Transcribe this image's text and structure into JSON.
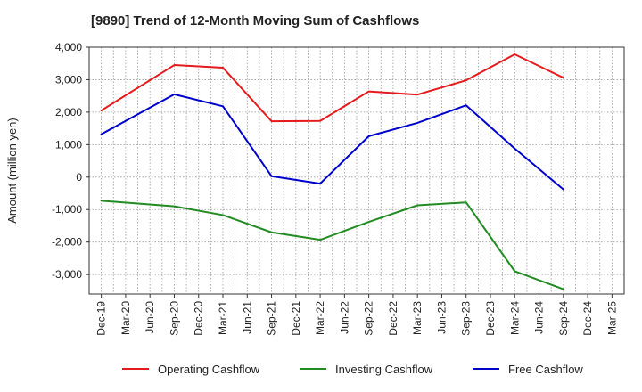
{
  "chart_data": {
    "type": "line",
    "title": "[9890]  Trend of 12-Month Moving Sum of Cashflows",
    "ylabel": "Amount (million yen)",
    "xlabel": "",
    "ylim": [
      -3600,
      4000
    ],
    "yticks": [
      4000,
      3000,
      2000,
      1000,
      0,
      -1000,
      -2000,
      -3000
    ],
    "ytick_labels": [
      "4,000",
      "3,000",
      "2,000",
      "1,000",
      "0",
      "-1,000",
      "-2,000",
      "-3,000"
    ],
    "categories": [
      "Dec-19",
      "Mar-20",
      "Jun-20",
      "Sep-20",
      "Dec-20",
      "Mar-21",
      "Jun-21",
      "Sep-21",
      "Dec-21",
      "Mar-22",
      "Jun-22",
      "Sep-22",
      "Dec-22",
      "Mar-23",
      "Jun-23",
      "Sep-23",
      "Dec-23",
      "Mar-24",
      "Jun-24",
      "Sep-24",
      "Dec-24",
      "Mar-25"
    ],
    "grid": true,
    "legend_position": "bottom",
    "series": [
      {
        "name": "Operating Cashflow",
        "color": "#e41a1c",
        "points": [
          {
            "x": "Dec-19",
            "y": 2050
          },
          {
            "x": "Sep-20",
            "y": 3450
          },
          {
            "x": "Mar-21",
            "y": 3370
          },
          {
            "x": "Sep-21",
            "y": 1720
          },
          {
            "x": "Mar-22",
            "y": 1730
          },
          {
            "x": "Sep-22",
            "y": 2640
          },
          {
            "x": "Mar-23",
            "y": 2540
          },
          {
            "x": "Sep-23",
            "y": 2980
          },
          {
            "x": "Mar-24",
            "y": 3780
          },
          {
            "x": "Sep-24",
            "y": 3060
          }
        ]
      },
      {
        "name": "Investing Cashflow",
        "color": "#228b22",
        "points": [
          {
            "x": "Dec-19",
            "y": -730
          },
          {
            "x": "Sep-20",
            "y": -900
          },
          {
            "x": "Mar-21",
            "y": -1170
          },
          {
            "x": "Sep-21",
            "y": -1700
          },
          {
            "x": "Mar-22",
            "y": -1930
          },
          {
            "x": "Sep-22",
            "y": -1380
          },
          {
            "x": "Mar-23",
            "y": -870
          },
          {
            "x": "Sep-23",
            "y": -780
          },
          {
            "x": "Mar-24",
            "y": -2900
          },
          {
            "x": "Sep-24",
            "y": -3450
          }
        ]
      },
      {
        "name": "Free Cashflow",
        "color": "#0000cc",
        "points": [
          {
            "x": "Dec-19",
            "y": 1320
          },
          {
            "x": "Sep-20",
            "y": 2550
          },
          {
            "x": "Mar-21",
            "y": 2180
          },
          {
            "x": "Sep-21",
            "y": 30
          },
          {
            "x": "Mar-22",
            "y": -200
          },
          {
            "x": "Sep-22",
            "y": 1260
          },
          {
            "x": "Mar-23",
            "y": 1670
          },
          {
            "x": "Sep-23",
            "y": 2210
          },
          {
            "x": "Mar-24",
            "y": 880
          },
          {
            "x": "Sep-24",
            "y": -380
          }
        ]
      }
    ]
  }
}
